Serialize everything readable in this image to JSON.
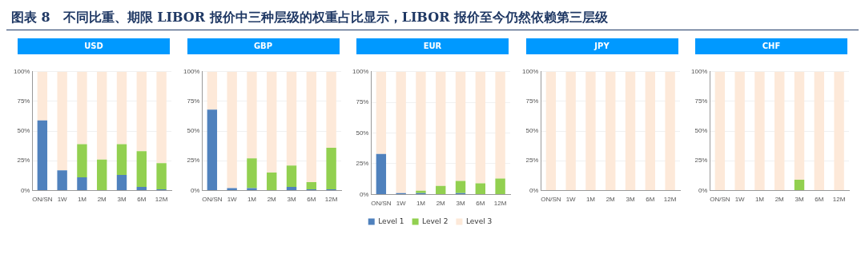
{
  "chart_data": [
    {
      "type": "bar",
      "title": "图表 8　不同比重、期限 LIBOR 报价中三种层级的权重占比显示，LIBOR 报价至今仍然依赖第三层级",
      "subtitle": "USD",
      "categories": [
        "ON/SN",
        "1W",
        "1M",
        "2M",
        "3M",
        "6M",
        "12M"
      ],
      "stacked": true,
      "ylim": [
        0,
        100
      ],
      "yticks": [
        {
          "value": 0,
          "label": "0%"
        },
        {
          "value": 25,
          "label": "25%"
        },
        {
          "value": 50,
          "label": "50%"
        },
        {
          "value": 75,
          "label": "75%"
        },
        {
          "value": 100,
          "label": "100%"
        }
      ],
      "grid": "y",
      "legend": false,
      "series": [
        {
          "color": "#4f81bd",
          "values": [
            59,
            17,
            11,
            0,
            13,
            3,
            1
          ]
        },
        {
          "color": "#92d050",
          "values": [
            0,
            0,
            28,
            26,
            26,
            30,
            22
          ]
        },
        {
          "color": "#fde9d9",
          "values": [
            41,
            83,
            61,
            74,
            61,
            67,
            77
          ]
        }
      ]
    },
    {
      "type": "bar",
      "subtitle": "GBP",
      "categories": [
        "ON/SN",
        "1W",
        "1M",
        "2M",
        "3M",
        "6M",
        "12M"
      ],
      "stacked": true,
      "ylim": [
        0,
        100
      ],
      "yticks": [
        {
          "value": 0,
          "label": "0%"
        },
        {
          "value": 25,
          "label": "25%"
        },
        {
          "value": 50,
          "label": "50%"
        },
        {
          "value": 75,
          "label": "75%"
        },
        {
          "value": 100,
          "label": "100%"
        }
      ],
      "grid": "y",
      "legend": false,
      "series": [
        {
          "color": "#4f81bd",
          "values": [
            68,
            2,
            2,
            0,
            3,
            1,
            1
          ]
        },
        {
          "color": "#92d050",
          "values": [
            0,
            0,
            25,
            15,
            18,
            6,
            35
          ]
        },
        {
          "color": "#fde9d9",
          "values": [
            32,
            98,
            73,
            85,
            79,
            93,
            64
          ]
        }
      ]
    },
    {
      "type": "bar",
      "subtitle": "EUR",
      "categories": [
        "ON/SN",
        "1W",
        "1M",
        "2M",
        "3M",
        "6M",
        "12M"
      ],
      "stacked": true,
      "ylim": [
        0,
        100
      ],
      "yticks": [
        {
          "value": 0,
          "label": "0%"
        },
        {
          "value": 25,
          "label": "25%"
        },
        {
          "value": 50,
          "label": "50%"
        },
        {
          "value": 75,
          "label": "75%"
        },
        {
          "value": 100,
          "label": "100%"
        }
      ],
      "grid": "y",
      "legend": "bottom",
      "series": [
        {
          "name": "Level 1",
          "color": "#4f81bd",
          "values": [
            33,
            1,
            1,
            0,
            1,
            0,
            0
          ]
        },
        {
          "name": "Level 2",
          "color": "#92d050",
          "values": [
            0,
            0,
            2,
            7,
            10,
            9,
            13
          ]
        },
        {
          "name": "Level 3",
          "color": "#fde9d9",
          "values": [
            67,
            99,
            97,
            93,
            89,
            91,
            87
          ]
        }
      ]
    },
    {
      "type": "bar",
      "subtitle": "JPY",
      "categories": [
        "ON/SN",
        "1W",
        "1M",
        "2M",
        "3M",
        "6M",
        "12M"
      ],
      "stacked": true,
      "ylim": [
        0,
        100
      ],
      "yticks": [
        {
          "value": 0,
          "label": "0%"
        },
        {
          "value": 25,
          "label": "25%"
        },
        {
          "value": 50,
          "label": "50%"
        },
        {
          "value": 75,
          "label": "75%"
        },
        {
          "value": 100,
          "label": "100%"
        }
      ],
      "grid": "y",
      "legend": false,
      "series": [
        {
          "color": "#4f81bd",
          "values": [
            0,
            0,
            0,
            0,
            0,
            0,
            0
          ]
        },
        {
          "color": "#92d050",
          "values": [
            0,
            0,
            0,
            0,
            0,
            0,
            0
          ]
        },
        {
          "color": "#fde9d9",
          "values": [
            100,
            100,
            100,
            100,
            100,
            100,
            100
          ]
        }
      ]
    },
    {
      "type": "bar",
      "subtitle": "CHF",
      "categories": [
        "ON/SN",
        "1W",
        "1M",
        "2M",
        "3M",
        "6M",
        "12M"
      ],
      "stacked": true,
      "ylim": [
        0,
        100
      ],
      "yticks": [
        {
          "value": 0,
          "label": "0%"
        },
        {
          "value": 25,
          "label": "25%"
        },
        {
          "value": 50,
          "label": "50%"
        },
        {
          "value": 75,
          "label": "75%"
        },
        {
          "value": 100,
          "label": "100%"
        }
      ],
      "grid": "y",
      "legend": false,
      "series": [
        {
          "color": "#4f81bd",
          "values": [
            0,
            0,
            0,
            0,
            0,
            0,
            0
          ]
        },
        {
          "color": "#92d050",
          "values": [
            0,
            0,
            0,
            0,
            9,
            0,
            0
          ]
        },
        {
          "color": "#fde9d9",
          "values": [
            100,
            100,
            100,
            100,
            91,
            100,
            100
          ]
        }
      ]
    }
  ]
}
